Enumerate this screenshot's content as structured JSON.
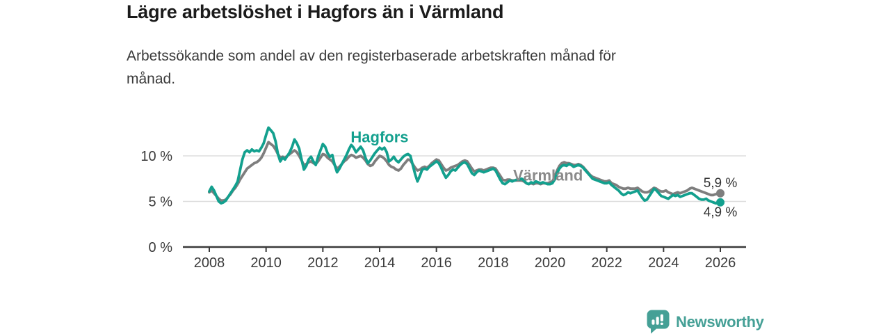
{
  "header": {
    "title": "Lägre arbetslöshet i Hagfors än i Värmland",
    "subtitle_line1": "Arbetssökande som andel av den registerbaserade arbetskraften månad för",
    "subtitle_line2": "månad."
  },
  "footer": {
    "brand": "Newsworthy",
    "brand_color": "#45A096"
  },
  "chart_data": {
    "type": "line",
    "title": "Lägre arbetslöshet i Hagfors än i Värmland",
    "subtitle": "Arbetssökande som andel av den registerbaserade arbetskraften månad för månad.",
    "x_start": 2008.0,
    "x_interval": "monthly",
    "x_end": 2026.0,
    "ylim": [
      0,
      14
    ],
    "grid": "horizontal",
    "colors": {
      "hagfors": "#13A08E",
      "varmland": "#7E7E7E",
      "axis": "#3A3A3A",
      "grid": "#DDDDDD",
      "value_label": "#333333"
    },
    "x_axis": {
      "ticks": [
        {
          "value": 2008,
          "label": "2008"
        },
        {
          "value": 2010,
          "label": "2010"
        },
        {
          "value": 2012,
          "label": "2012"
        },
        {
          "value": 2014,
          "label": "2014"
        },
        {
          "value": 2016,
          "label": "2016"
        },
        {
          "value": 2018,
          "label": "2018"
        },
        {
          "value": 2020,
          "label": "2020"
        },
        {
          "value": 2022,
          "label": "2022"
        },
        {
          "value": 2024,
          "label": "2024"
        },
        {
          "value": 2026,
          "label": "2026"
        }
      ]
    },
    "y_axis": {
      "ticks": [
        {
          "value": 0,
          "label": "0 %"
        },
        {
          "value": 5,
          "label": "5 %"
        },
        {
          "value": 10,
          "label": "10 %"
        }
      ]
    },
    "series": [
      {
        "name": "Värmland",
        "color": "#7E7E7E",
        "end_value": 5.9,
        "end_label": "5,9 %",
        "values": [
          6.0,
          6.2,
          5.9,
          5.6,
          5.3,
          5.1,
          5.1,
          5.2,
          5.5,
          5.8,
          6.2,
          6.5,
          6.9,
          7.4,
          7.8,
          8.2,
          8.6,
          8.8,
          9.0,
          9.2,
          9.3,
          9.5,
          9.8,
          10.3,
          10.9,
          11.5,
          11.3,
          11.1,
          10.7,
          10.2,
          9.8,
          9.9,
          9.8,
          10.0,
          10.2,
          10.4,
          10.6,
          10.4,
          10.0,
          9.5,
          9.0,
          9.1,
          9.3,
          9.4,
          9.2,
          9.1,
          9.4,
          9.8,
          10.2,
          10.1,
          9.8,
          9.6,
          9.4,
          9.0,
          8.6,
          8.8,
          9.1,
          9.4,
          9.6,
          9.9,
          10.1,
          10.0,
          9.8,
          9.9,
          10.0,
          9.8,
          9.5,
          9.1,
          8.9,
          9.0,
          9.4,
          9.7,
          10.0,
          9.9,
          9.7,
          9.4,
          9.0,
          8.8,
          8.7,
          8.5,
          8.4,
          8.6,
          9.0,
          9.3,
          9.6,
          9.5,
          9.1,
          8.7,
          8.4,
          8.5,
          8.7,
          8.8,
          8.7,
          8.9,
          9.2,
          9.4,
          9.6,
          9.5,
          9.1,
          8.7,
          8.4,
          8.5,
          8.7,
          8.8,
          8.9,
          9.0,
          9.2,
          9.4,
          9.5,
          9.4,
          9.0,
          8.6,
          8.3,
          8.4,
          8.5,
          8.5,
          8.4,
          8.5,
          8.6,
          8.7,
          8.7,
          8.6,
          8.2,
          7.8,
          7.4,
          7.3,
          7.4,
          7.4,
          7.3,
          7.3,
          7.3,
          7.3,
          7.3,
          7.2,
          7.0,
          6.9,
          7.0,
          6.9,
          7.0,
          7.0,
          6.9,
          7.0,
          7.0,
          7.0,
          7.1,
          7.2,
          7.7,
          8.4,
          8.9,
          9.2,
          9.3,
          9.2,
          9.2,
          9.1,
          9.0,
          9.0,
          9.1,
          9.0,
          8.8,
          8.5,
          8.2,
          7.9,
          7.7,
          7.6,
          7.5,
          7.4,
          7.3,
          7.2,
          7.2,
          7.3,
          7.0,
          6.9,
          6.8,
          6.6,
          6.5,
          6.4,
          6.4,
          6.5,
          6.4,
          6.4,
          6.4,
          6.5,
          6.3,
          6.1,
          6.0,
          6.0,
          6.1,
          6.3,
          6.5,
          6.4,
          6.2,
          6.1,
          6.1,
          6.2,
          6.0,
          5.9,
          5.8,
          5.9,
          6.0,
          5.9,
          6.0,
          6.1,
          6.2,
          6.4,
          6.5,
          6.4,
          6.3,
          6.2,
          6.1,
          6.0,
          5.9,
          5.8,
          5.7,
          5.7,
          5.8,
          5.8,
          5.9
        ]
      },
      {
        "name": "Hagfors",
        "color": "#13A08E",
        "end_value": 4.9,
        "end_label": "4,9 %",
        "values": [
          6.1,
          6.6,
          6.2,
          5.6,
          5.0,
          4.8,
          4.9,
          5.1,
          5.5,
          5.9,
          6.3,
          6.7,
          7.2,
          8.4,
          9.6,
          10.4,
          10.6,
          10.4,
          10.7,
          10.5,
          10.6,
          10.5,
          10.9,
          11.4,
          12.3,
          13.1,
          12.8,
          12.5,
          11.6,
          10.2,
          9.4,
          9.8,
          9.6,
          10.0,
          10.4,
          11.0,
          11.8,
          11.4,
          10.8,
          9.6,
          8.5,
          8.9,
          9.6,
          9.9,
          9.4,
          9.0,
          9.9,
          10.6,
          11.3,
          11.0,
          10.3,
          9.9,
          10.1,
          9.0,
          8.2,
          8.6,
          9.1,
          9.6,
          10.1,
          10.7,
          11.2,
          10.9,
          10.4,
          10.7,
          11.0,
          10.6,
          9.8,
          9.2,
          9.5,
          9.9,
          10.3,
          10.6,
          10.9,
          10.7,
          10.9,
          10.4,
          9.4,
          9.6,
          9.9,
          9.5,
          9.3,
          9.6,
          9.9,
          10.1,
          10.2,
          10.0,
          9.0,
          8.0,
          7.2,
          7.8,
          8.5,
          8.6,
          8.5,
          8.8,
          9.0,
          9.2,
          9.4,
          9.2,
          8.7,
          8.1,
          7.6,
          7.9,
          8.3,
          8.5,
          8.4,
          8.7,
          9.0,
          9.2,
          9.3,
          9.1,
          8.6,
          8.1,
          7.9,
          8.2,
          8.4,
          8.3,
          8.2,
          8.3,
          8.4,
          8.5,
          8.6,
          8.4,
          7.9,
          7.4,
          7.0,
          6.9,
          7.1,
          7.3,
          7.2,
          7.3,
          7.4,
          7.4,
          7.5,
          7.3,
          7.0,
          6.9,
          7.1,
          7.0,
          7.2,
          7.1,
          7.0,
          7.1,
          7.0,
          6.9,
          6.9,
          7.0,
          7.4,
          8.1,
          8.6,
          8.9,
          9.0,
          8.9,
          9.1,
          9.0,
          8.8,
          8.9,
          9.0,
          8.9,
          8.7,
          8.4,
          8.1,
          7.8,
          7.5,
          7.4,
          7.3,
          7.2,
          7.1,
          7.0,
          7.0,
          7.1,
          6.8,
          6.6,
          6.4,
          6.2,
          5.9,
          5.7,
          5.8,
          6.0,
          5.9,
          6.0,
          6.1,
          6.2,
          5.8,
          5.4,
          5.1,
          5.2,
          5.6,
          6.0,
          6.4,
          6.2,
          5.9,
          5.6,
          5.5,
          5.4,
          5.3,
          5.5,
          5.7,
          5.6,
          5.7,
          5.5,
          5.6,
          5.7,
          5.8,
          5.9,
          5.9,
          5.7,
          5.5,
          5.3,
          5.2,
          5.2,
          5.3,
          5.1,
          5.0,
          4.9,
          4.8,
          4.8,
          4.9
        ]
      }
    ],
    "annotations": [
      {
        "id": "hagfors-series-label",
        "text": "Hagfors",
        "x": 2014.0,
        "y": 11.5,
        "color": "#13A08E",
        "bold": true,
        "size": 22,
        "anchor": "middle"
      },
      {
        "id": "varmland-series-label",
        "text": "Värmland",
        "x": 2019.93,
        "y": 7.3,
        "color": "#8A8A8A",
        "bold": true,
        "size": 22,
        "anchor": "middle"
      },
      {
        "id": "varmland-end-value",
        "text": "5,9 %",
        "x": 2026.0,
        "y": 6.55,
        "color": "#333333",
        "bold": false,
        "size": 19,
        "anchor": "middle"
      },
      {
        "id": "hagfors-end-value",
        "text": "4,9 %",
        "x": 2026.0,
        "y": 3.35,
        "color": "#333333",
        "bold": false,
        "size": 19,
        "anchor": "middle"
      }
    ],
    "legend_position": "inline-labels"
  }
}
